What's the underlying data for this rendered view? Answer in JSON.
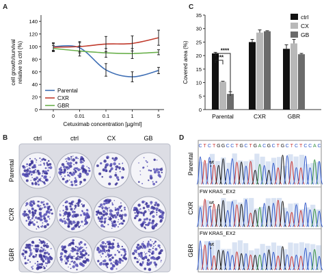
{
  "panels": {
    "A": {
      "letter": "A"
    },
    "B": {
      "letter": "B"
    },
    "C": {
      "letter": "C"
    },
    "D": {
      "letter": "D"
    }
  },
  "chart_data": [
    {
      "id": "A",
      "type": "line",
      "xlabel": "Cetuximab concentration [µg/ml]",
      "ylabel_line1": "cell growth/survival",
      "ylabel_line2": "relative to ctrl (%)",
      "categories": [
        "0",
        "0.01",
        "0.1",
        "1",
        "5"
      ],
      "ylim": [
        0,
        150
      ],
      "yticks": [
        0,
        20,
        40,
        60,
        80,
        100,
        120,
        140
      ],
      "legend_position": "bottom-left",
      "series": [
        {
          "name": "Parental",
          "color": "#3f6fb5",
          "values": [
            100,
            98,
            63,
            52,
            62
          ],
          "errors": [
            6,
            8,
            10,
            8,
            5
          ]
        },
        {
          "name": "CXR",
          "color": "#c0392b",
          "values": [
            99,
            100,
            104,
            105,
            114
          ],
          "errors": [
            6,
            8,
            12,
            12,
            12
          ]
        },
        {
          "name": "GBR",
          "color": "#6ab04c",
          "values": [
            97,
            93,
            90,
            89,
            91
          ],
          "errors": [
            5,
            8,
            7,
            8,
            4
          ]
        }
      ]
    },
    {
      "id": "C",
      "type": "bar",
      "ylabel": "Covered area (%)",
      "categories": [
        "Parental",
        "CXR",
        "GBR"
      ],
      "ylim": [
        0,
        35
      ],
      "yticks": [
        0,
        5,
        10,
        15,
        20,
        25,
        30,
        35
      ],
      "legend_position": "top-right",
      "series": [
        {
          "name": "ctrl",
          "color": "#111111",
          "values": [
            20.8,
            25.0,
            22.5
          ],
          "errors": [
            0.4,
            1.0,
            1.5
          ]
        },
        {
          "name": "CX",
          "color": "#b8b8b8",
          "values": [
            10.3,
            28.5,
            24.5
          ],
          "errors": [
            0.2,
            1.0,
            1.5
          ]
        },
        {
          "name": "GB",
          "color": "#6b6b6b",
          "values": [
            5.8,
            29.0,
            20.5
          ],
          "errors": [
            0.8,
            0.2,
            0.3
          ]
        }
      ],
      "significance": [
        "***",
        "****"
      ]
    }
  ],
  "panelB": {
    "col_labels": [
      "ctrl",
      "ctrl",
      "CX",
      "GB"
    ],
    "row_labels": [
      "Parental",
      "CXR",
      "GBR"
    ]
  },
  "panelD": {
    "row_labels": [
      "Parental",
      "CXR",
      "GBR"
    ],
    "sequence": "C T C T G G C C T G C T G A C G C T G C T C T C C A C",
    "track_label": "FW KRAS_EX2",
    "wt_label": "wt"
  }
}
